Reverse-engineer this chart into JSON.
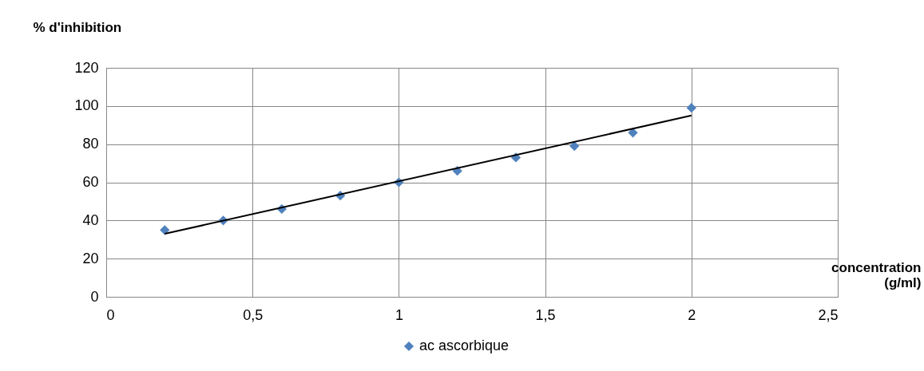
{
  "chart_data": {
    "type": "scatter",
    "ylabel": "% d'inhibition",
    "xlabel": "concentration (g/ml)",
    "series": [
      {
        "name": "ac ascorbique",
        "type": "scatter",
        "color": "#4f81bd",
        "marker": "diamond",
        "x": [
          0.2,
          0.4,
          0.6,
          0.8,
          1.0,
          1.2,
          1.4,
          1.6,
          1.8,
          2.0
        ],
        "values": [
          35,
          40,
          46,
          53,
          60,
          66,
          73,
          79,
          86,
          99
        ]
      },
      {
        "type": "line",
        "color": "#000000",
        "marker": "none",
        "line_style": "solid",
        "x": [
          0.2,
          2.0
        ],
        "values": [
          33,
          95
        ]
      }
    ],
    "xlim": [
      0,
      2.5
    ],
    "xticks": [
      0,
      {
        "value": 0.5,
        "label": "0,5"
      },
      1,
      {
        "value": 1.5,
        "label": "1,5"
      },
      2,
      {
        "value": 2.5,
        "label": "2,5"
      }
    ],
    "ylim": [
      0,
      120
    ],
    "yticks": [
      0,
      20,
      40,
      60,
      80,
      100,
      120
    ],
    "grid": true,
    "legend": "bottom"
  }
}
